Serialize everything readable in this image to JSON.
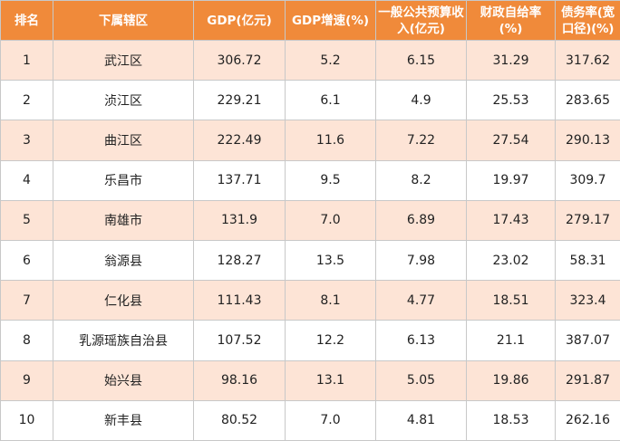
{
  "table": {
    "header_color": "#f08a3a",
    "stripe_color": "#fde4d6",
    "columns": [
      "排名",
      "下属辖区",
      "GDP(亿元)",
      "GDP增速(%)",
      "一般公共预算收入(亿元)",
      "财政自给率(%)",
      "债务率(宽口径)(%)"
    ],
    "rows": [
      [
        "1",
        "武江区",
        "306.72",
        "5.2",
        "6.15",
        "31.29",
        "317.62"
      ],
      [
        "2",
        "浈江区",
        "229.21",
        "6.1",
        "4.9",
        "25.53",
        "283.65"
      ],
      [
        "3",
        "曲江区",
        "222.49",
        "11.6",
        "7.22",
        "27.54",
        "290.13"
      ],
      [
        "4",
        "乐昌市",
        "137.71",
        "9.5",
        "8.2",
        "19.97",
        "309.7"
      ],
      [
        "5",
        "南雄市",
        "131.9",
        "7.0",
        "6.89",
        "17.43",
        "279.17"
      ],
      [
        "6",
        "翁源县",
        "128.27",
        "13.5",
        "7.98",
        "23.02",
        "58.31"
      ],
      [
        "7",
        "仁化县",
        "111.43",
        "8.1",
        "4.77",
        "18.51",
        "323.4"
      ],
      [
        "8",
        "乳源瑶族自治县",
        "107.52",
        "12.2",
        "6.13",
        "21.1",
        "387.07"
      ],
      [
        "9",
        "始兴县",
        "98.16",
        "13.1",
        "5.05",
        "19.86",
        "291.87"
      ],
      [
        "10",
        "新丰县",
        "80.52",
        "7.0",
        "4.81",
        "18.53",
        "262.16"
      ]
    ]
  }
}
